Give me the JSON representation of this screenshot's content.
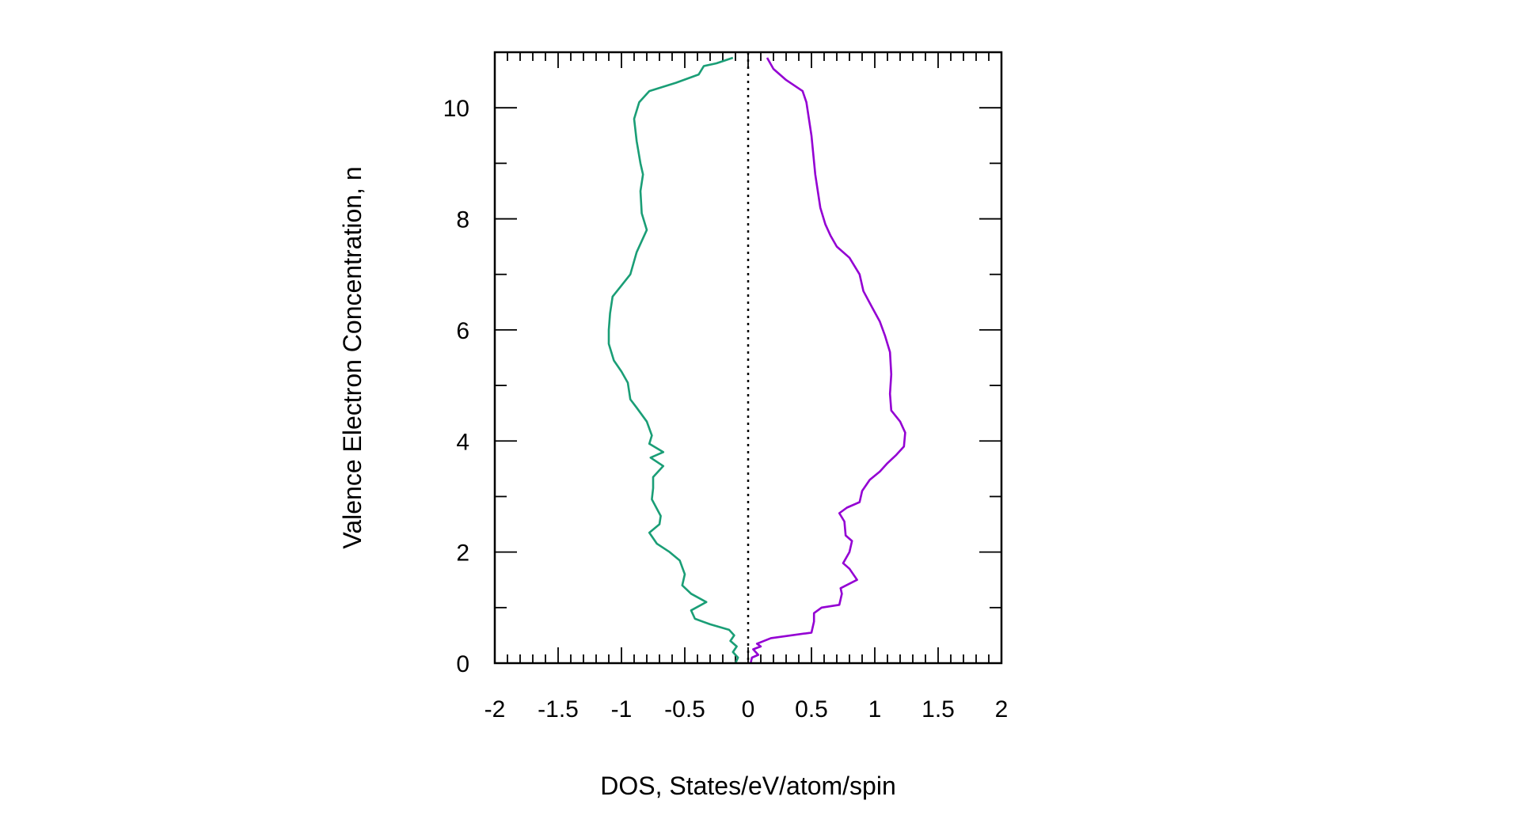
{
  "chart_data": {
    "type": "line",
    "title": "",
    "xlabel": "DOS, States/eV/atom/spin",
    "ylabel": "Valence Electron Concentration, n",
    "xlim": [
      -2,
      2
    ],
    "ylim": [
      0,
      11
    ],
    "xticks": [
      -2,
      -1.5,
      -1,
      -0.5,
      0,
      0.5,
      1,
      1.5,
      2
    ],
    "xtick_labels": [
      "-2",
      "-1.5",
      "-1",
      "-0.5",
      "0",
      "0.5",
      "1",
      "1.5",
      "2"
    ],
    "yticks": [
      0,
      2,
      4,
      6,
      8,
      10
    ],
    "ytick_labels": [
      "0",
      "2",
      "4",
      "6",
      "8",
      "10"
    ],
    "grid": false,
    "legend": "none",
    "reference_line": {
      "x": 0,
      "style": "dotted",
      "color": "#000000"
    },
    "series": [
      {
        "color": "#1a9e76",
        "points": [
          [
            -0.1,
            0
          ],
          [
            -0.08,
            0.1
          ],
          [
            -0.12,
            0.2
          ],
          [
            -0.09,
            0.3
          ],
          [
            -0.14,
            0.4
          ],
          [
            -0.11,
            0.5
          ],
          [
            -0.15,
            0.6
          ],
          [
            -0.3,
            0.7
          ],
          [
            -0.42,
            0.8
          ],
          [
            -0.45,
            0.95
          ],
          [
            -0.33,
            1.1
          ],
          [
            -0.45,
            1.25
          ],
          [
            -0.52,
            1.4
          ],
          [
            -0.5,
            1.6
          ],
          [
            -0.54,
            1.85
          ],
          [
            -0.62,
            2.0
          ],
          [
            -0.72,
            2.15
          ],
          [
            -0.78,
            2.35
          ],
          [
            -0.7,
            2.5
          ],
          [
            -0.69,
            2.65
          ],
          [
            -0.76,
            2.95
          ],
          [
            -0.75,
            3.15
          ],
          [
            -0.75,
            3.35
          ],
          [
            -0.67,
            3.55
          ],
          [
            -0.77,
            3.7
          ],
          [
            -0.67,
            3.8
          ],
          [
            -0.78,
            3.95
          ],
          [
            -0.76,
            4.1
          ],
          [
            -0.8,
            4.35
          ],
          [
            -0.88,
            4.6
          ],
          [
            -0.93,
            4.75
          ],
          [
            -0.95,
            5.05
          ],
          [
            -1.0,
            5.25
          ],
          [
            -1.06,
            5.45
          ],
          [
            -1.1,
            5.75
          ],
          [
            -1.1,
            6.0
          ],
          [
            -1.09,
            6.3
          ],
          [
            -1.07,
            6.6
          ],
          [
            -1.0,
            6.8
          ],
          [
            -0.93,
            7.0
          ],
          [
            -0.88,
            7.4
          ],
          [
            -0.8,
            7.8
          ],
          [
            -0.84,
            8.1
          ],
          [
            -0.85,
            8.5
          ],
          [
            -0.83,
            8.8
          ],
          [
            -0.85,
            9.0
          ],
          [
            -0.88,
            9.4
          ],
          [
            -0.9,
            9.8
          ],
          [
            -0.86,
            10.1
          ],
          [
            -0.78,
            10.3
          ],
          [
            -0.57,
            10.45
          ],
          [
            -0.39,
            10.6
          ],
          [
            -0.35,
            10.75
          ],
          [
            -0.25,
            10.8
          ],
          [
            -0.12,
            10.9
          ]
        ]
      },
      {
        "color": "#9400d3",
        "points": [
          [
            0.02,
            0
          ],
          [
            0.03,
            0.1
          ],
          [
            0.08,
            0.15
          ],
          [
            0.04,
            0.25
          ],
          [
            0.1,
            0.3
          ],
          [
            0.07,
            0.35
          ],
          [
            0.18,
            0.45
          ],
          [
            0.5,
            0.55
          ],
          [
            0.52,
            0.75
          ],
          [
            0.52,
            0.9
          ],
          [
            0.58,
            1.0
          ],
          [
            0.72,
            1.05
          ],
          [
            0.74,
            1.25
          ],
          [
            0.73,
            1.35
          ],
          [
            0.86,
            1.5
          ],
          [
            0.8,
            1.7
          ],
          [
            0.75,
            1.8
          ],
          [
            0.8,
            2.0
          ],
          [
            0.82,
            2.2
          ],
          [
            0.77,
            2.3
          ],
          [
            0.76,
            2.55
          ],
          [
            0.72,
            2.7
          ],
          [
            0.78,
            2.8
          ],
          [
            0.88,
            2.9
          ],
          [
            0.9,
            3.1
          ],
          [
            0.96,
            3.3
          ],
          [
            1.04,
            3.45
          ],
          [
            1.1,
            3.6
          ],
          [
            1.17,
            3.75
          ],
          [
            1.23,
            3.9
          ],
          [
            1.24,
            4.15
          ],
          [
            1.2,
            4.35
          ],
          [
            1.13,
            4.55
          ],
          [
            1.12,
            4.85
          ],
          [
            1.13,
            5.2
          ],
          [
            1.12,
            5.6
          ],
          [
            1.08,
            5.9
          ],
          [
            1.04,
            6.15
          ],
          [
            0.98,
            6.4
          ],
          [
            0.91,
            6.7
          ],
          [
            0.88,
            7.0
          ],
          [
            0.8,
            7.3
          ],
          [
            0.7,
            7.5
          ],
          [
            0.65,
            7.7
          ],
          [
            0.61,
            7.9
          ],
          [
            0.57,
            8.2
          ],
          [
            0.53,
            8.8
          ],
          [
            0.5,
            9.5
          ],
          [
            0.46,
            10.1
          ],
          [
            0.43,
            10.3
          ],
          [
            0.3,
            10.5
          ],
          [
            0.2,
            10.7
          ],
          [
            0.15,
            10.9
          ]
        ]
      }
    ]
  }
}
